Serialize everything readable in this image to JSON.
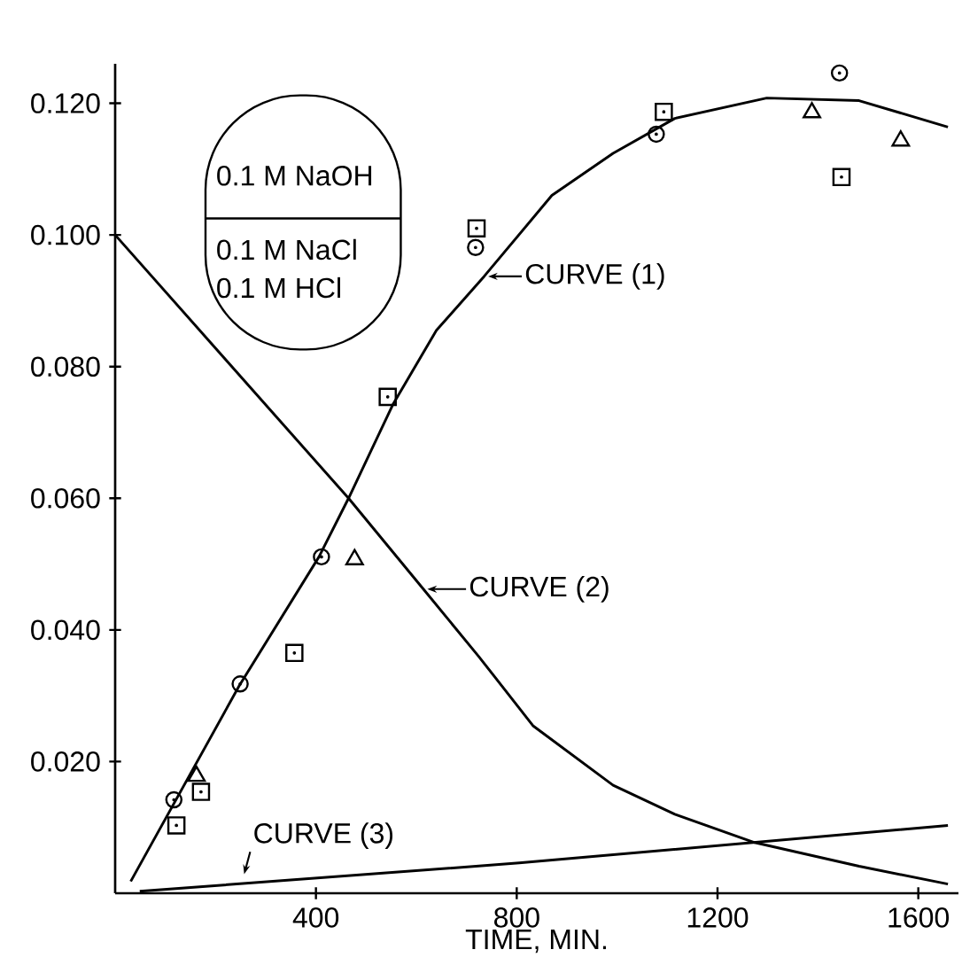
{
  "chart_data": {
    "type": "line",
    "xlabel": "TIME, MIN.",
    "xlim": [
      0,
      1680
    ],
    "ylim": [
      0,
      0.126
    ],
    "xticks": [
      400,
      800,
      1200,
      1600
    ],
    "yticks": [
      {
        "value": 0.02,
        "label": "0.020"
      },
      {
        "value": 0.04,
        "label": "0.040"
      },
      {
        "value": 0.06,
        "label": "0.060"
      },
      {
        "value": 0.08,
        "label": "0.080"
      },
      {
        "value": 0.1,
        "label": "0.100"
      },
      {
        "value": 0.12,
        "label": "0.120"
      }
    ],
    "series": [
      {
        "color": "#000000",
        "marker": "none",
        "x": [
          31,
          247,
          406,
          465,
          553,
          640,
          735,
          870,
          992,
          1115,
          1298,
          1482,
          1659
        ],
        "values": [
          0.0018,
          0.0315,
          0.0511,
          0.06,
          0.0742,
          0.0855,
          0.0937,
          0.106,
          0.1124,
          0.1177,
          0.1208,
          0.1204,
          0.1164
        ]
      },
      {
        "color": "#000000",
        "marker": "none",
        "x": [
          0,
          465,
          614,
          724,
          833,
          992,
          1115,
          1274,
          1482,
          1659
        ],
        "values": [
          0.1,
          0.06,
          0.0462,
          0.036,
          0.0254,
          0.0164,
          0.012,
          0.0077,
          0.0041,
          0.0014
        ]
      },
      {
        "color": "#000000",
        "marker": "none",
        "x": [
          49,
          805,
          1659
        ],
        "values": [
          0.0003,
          0.0046,
          0.0103
        ]
      },
      {
        "type": "scatter",
        "color": "#000000",
        "marker": "circle",
        "x": [
          117,
          249,
          411,
          718,
          1078,
          1443
        ],
        "values": [
          0.0142,
          0.0318,
          0.0511,
          0.0981,
          0.1153,
          0.1246
        ]
      },
      {
        "type": "scatter",
        "color": "#000000",
        "marker": "square",
        "x": [
          122,
          171,
          357,
          543,
          720,
          1093,
          1447
        ],
        "values": [
          0.0103,
          0.0154,
          0.0365,
          0.0754,
          0.101,
          0.1187,
          0.1088
        ]
      },
      {
        "type": "scatter",
        "color": "#000000",
        "marker": "triangle",
        "x": [
          162,
          477,
          1388,
          1565
        ],
        "values": [
          0.0178,
          0.0507,
          0.1186,
          0.1143
        ]
      }
    ],
    "annotations": [
      "0.1 M NaOH",
      "0.1 M NaCl",
      "0.1 M HCl",
      {
        "text": "CURVE (1)",
        "x": 735,
        "y": 0.0937
      },
      {
        "text": "CURVE (2)",
        "x": 614,
        "y": 0.0462
      },
      {
        "text": "CURVE (3)",
        "x": 249,
        "y": 0.0023
      }
    ]
  }
}
